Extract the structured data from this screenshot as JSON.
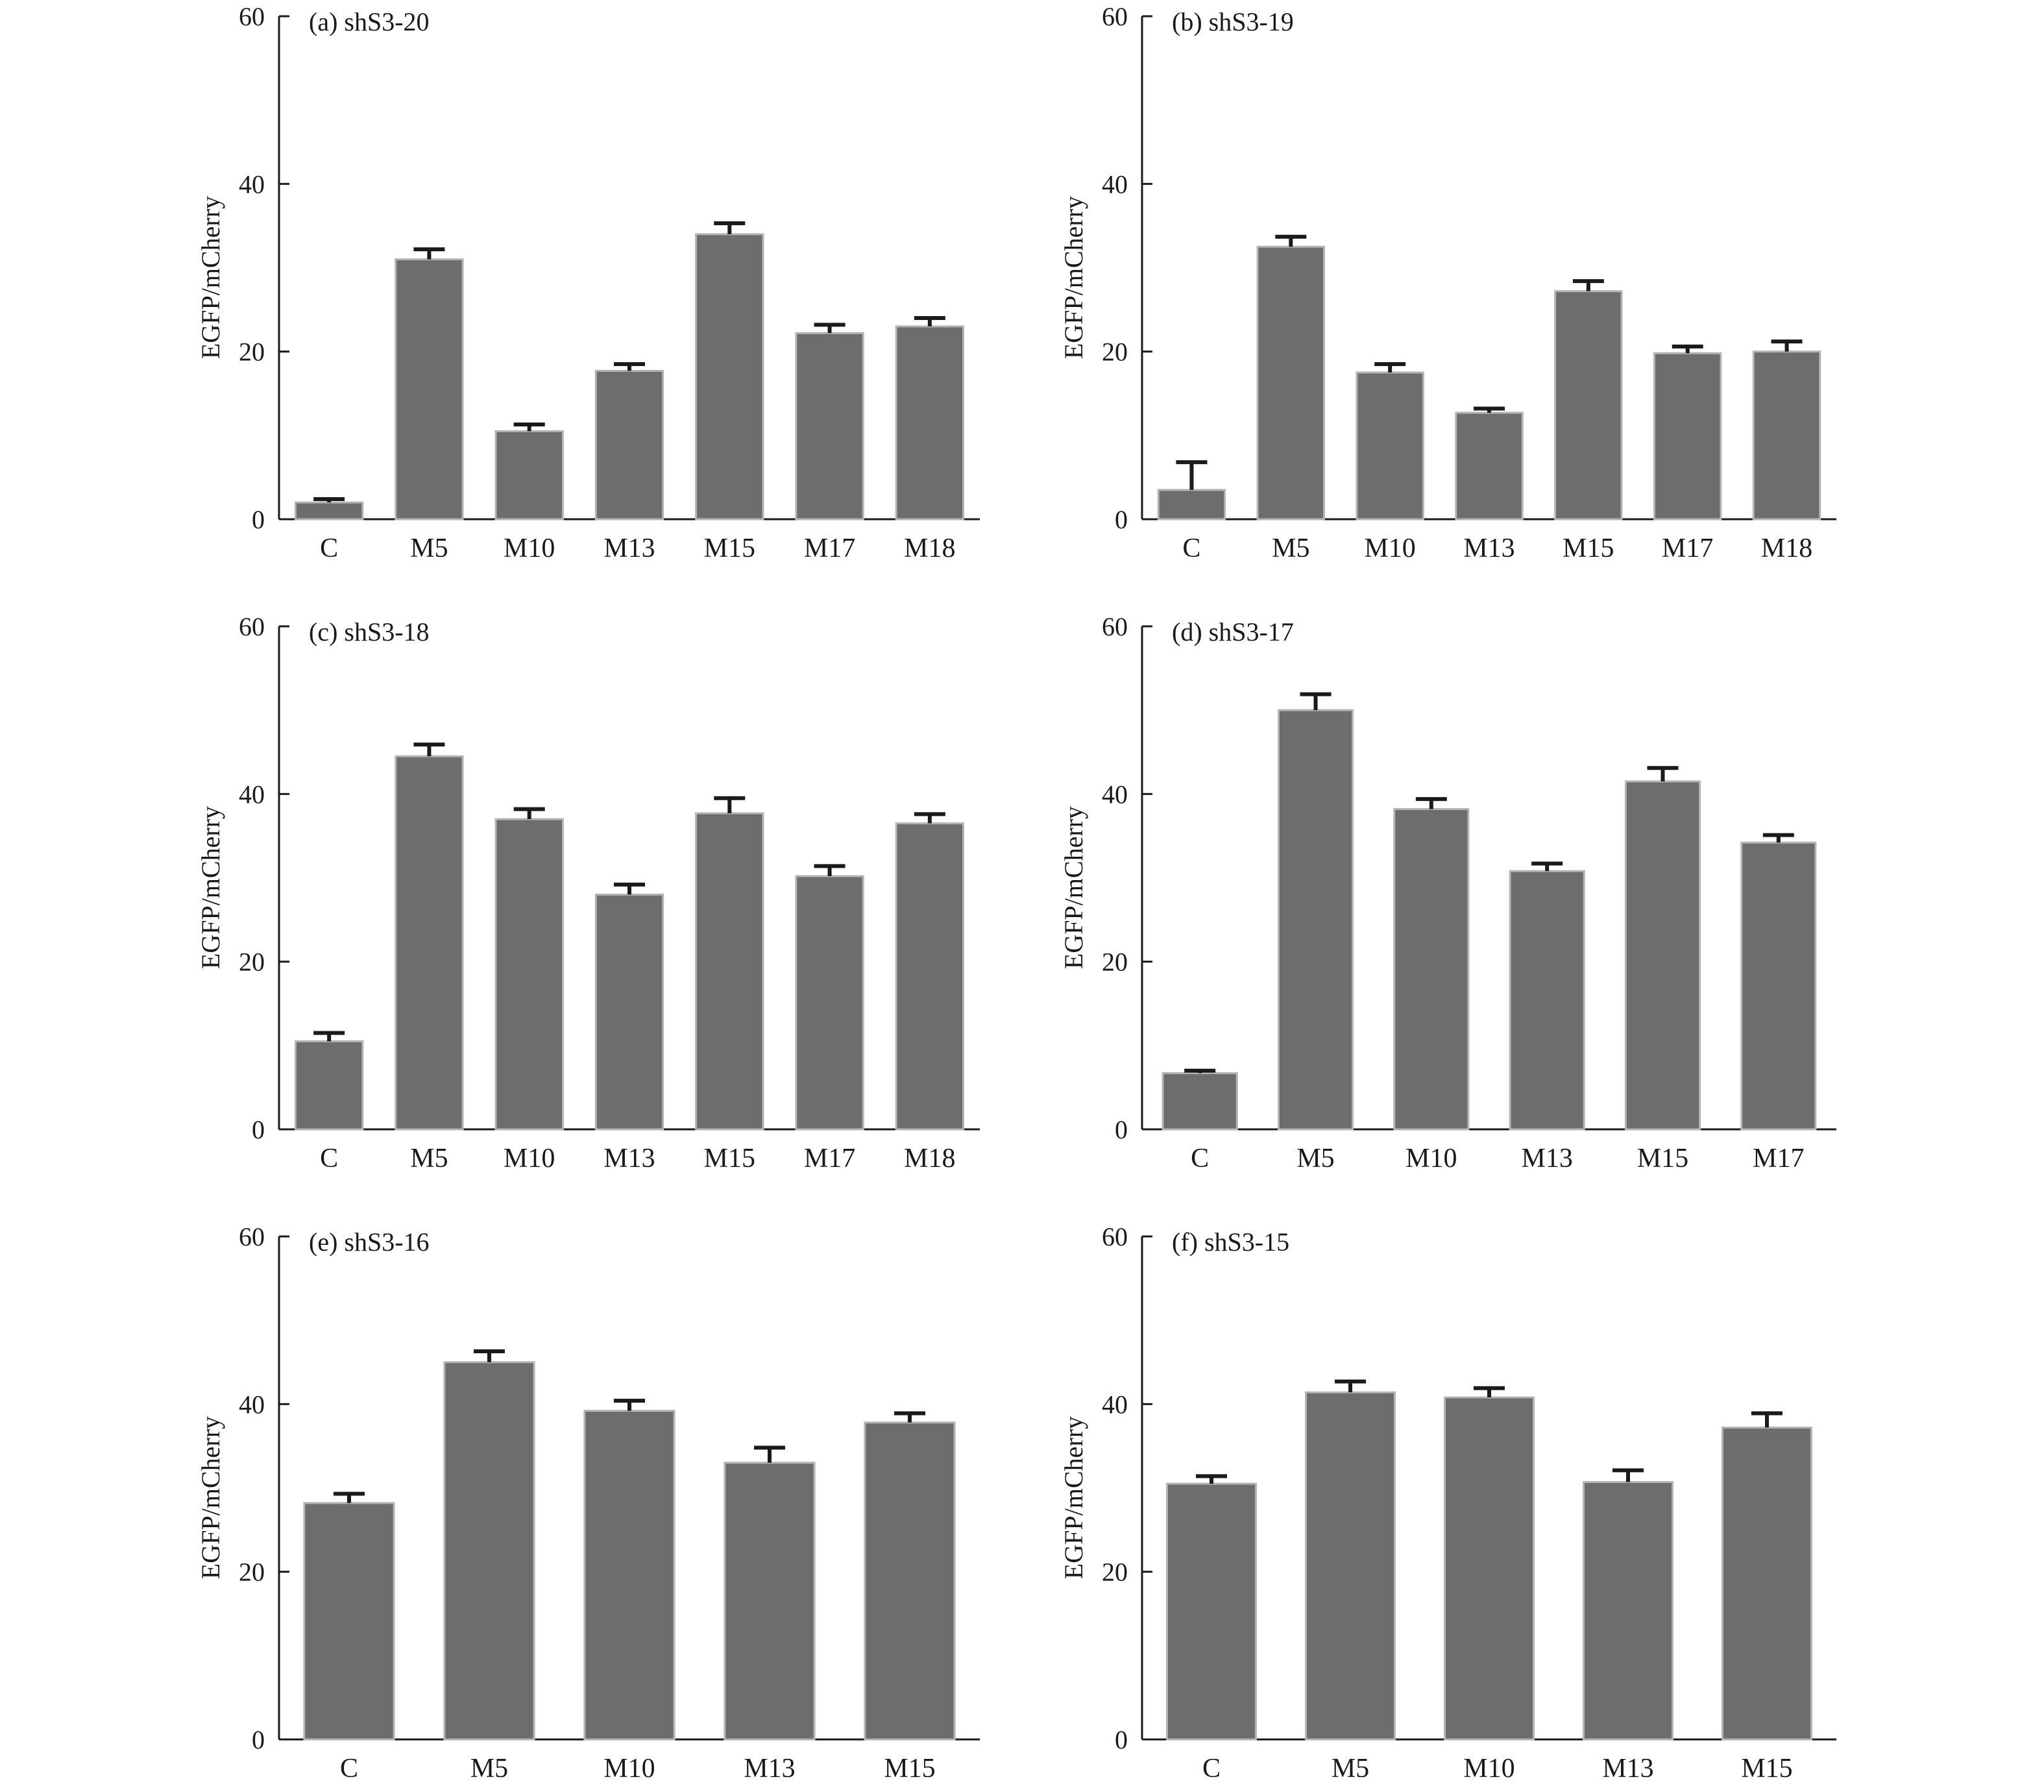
{
  "figure": {
    "bar_color": "#6d6d6d",
    "bar_edge_color": "#b4b4b4",
    "axis_color": "#1a1a1a"
  },
  "chart_data": [
    {
      "type": "bar",
      "title": "(a) shS3-20",
      "ylabel": "EGFP/mCherry",
      "xlabel": "",
      "ylim": [
        0,
        60
      ],
      "yticks": [
        0,
        20,
        40,
        60
      ],
      "categories": [
        "C",
        "M5",
        "M10",
        "M13",
        "M15",
        "M17",
        "M18"
      ],
      "values": [
        2,
        31,
        10.5,
        17.7,
        34,
        22.2,
        23
      ],
      "errors": [
        0.4,
        1.2,
        0.8,
        0.8,
        1.3,
        1.0,
        1.0
      ]
    },
    {
      "type": "bar",
      "title": "(b) shS3-19",
      "ylabel": "EGFP/mCherry",
      "xlabel": "",
      "ylim": [
        0,
        60
      ],
      "yticks": [
        0,
        20,
        40,
        60
      ],
      "categories": [
        "C",
        "M5",
        "M10",
        "M13",
        "M15",
        "M17",
        "M18"
      ],
      "values": [
        3.5,
        32.5,
        17.5,
        12.7,
        27.2,
        19.8,
        20
      ],
      "errors": [
        3.3,
        1.2,
        1.0,
        0.5,
        1.2,
        0.8,
        1.2
      ]
    },
    {
      "type": "bar",
      "title": "(c) shS3-18",
      "ylabel": "EGFP/mCherry",
      "xlabel": "",
      "ylim": [
        0,
        60
      ],
      "yticks": [
        0,
        20,
        40,
        60
      ],
      "categories": [
        "C",
        "M5",
        "M10",
        "M13",
        "M15",
        "M17",
        "M18"
      ],
      "values": [
        10.5,
        44.5,
        37,
        28,
        37.7,
        30.2,
        36.5
      ],
      "errors": [
        1.0,
        1.4,
        1.2,
        1.2,
        1.8,
        1.2,
        1.1
      ]
    },
    {
      "type": "bar",
      "title": "(d) shS3-17",
      "ylabel": "EGFP/mCherry",
      "xlabel": "",
      "ylim": [
        0,
        60
      ],
      "yticks": [
        0,
        20,
        40,
        60
      ],
      "categories": [
        "C",
        "M5",
        "M10",
        "M13",
        "M15",
        "M17"
      ],
      "values": [
        6.7,
        50,
        38.2,
        30.8,
        41.5,
        34.2
      ],
      "errors": [
        0.3,
        1.9,
        1.2,
        0.9,
        1.6,
        0.9
      ]
    },
    {
      "type": "bar",
      "title": "(e) shS3-16",
      "ylabel": "EGFP/mCherry",
      "xlabel": "",
      "ylim": [
        0,
        60
      ],
      "yticks": [
        0,
        20,
        40,
        60
      ],
      "categories": [
        "C",
        "M5",
        "M10",
        "M13",
        "M15"
      ],
      "values": [
        28.2,
        45,
        39.2,
        33,
        37.8
      ],
      "errors": [
        1.1,
        1.3,
        1.2,
        1.8,
        1.1
      ]
    },
    {
      "type": "bar",
      "title": "(f) shS3-15",
      "ylabel": "EGFP/mCherry",
      "xlabel": "",
      "ylim": [
        0,
        60
      ],
      "yticks": [
        0,
        20,
        40,
        60
      ],
      "categories": [
        "C",
        "M5",
        "M10",
        "M13",
        "M15"
      ],
      "values": [
        30.5,
        41.4,
        40.8,
        30.7,
        37.2
      ],
      "errors": [
        0.9,
        1.3,
        1.1,
        1.4,
        1.7
      ]
    }
  ]
}
